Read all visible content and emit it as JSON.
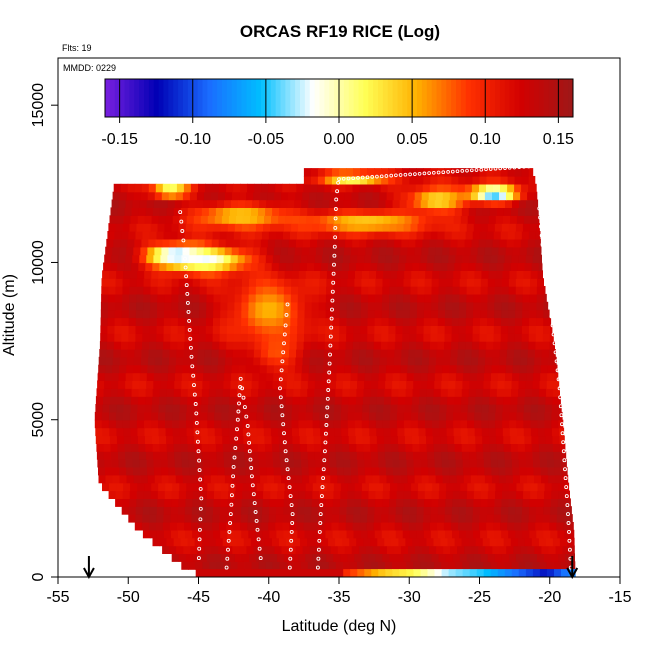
{
  "chart_data": {
    "type": "heatmap",
    "title": "ORCAS RF19 RICE (Log)",
    "flights_note": "Flts: 19",
    "date_note": "MMDD: 0229",
    "xlabel": "Latitude (deg N)",
    "ylabel": "Altitude (m)",
    "xlim": [
      -55,
      -15
    ],
    "ylim": [
      0,
      16500
    ],
    "x_ticks": [
      -55,
      -50,
      -45,
      -40,
      -35,
      -30,
      -25,
      -20,
      -15
    ],
    "y_ticks": [
      0,
      5000,
      10000,
      15000
    ],
    "colorbar": {
      "range": [
        -0.16,
        0.16
      ],
      "ticks": [
        -0.15,
        -0.1,
        -0.05,
        0.0,
        0.05,
        0.1,
        0.15
      ],
      "tick_labels": [
        "-0.15",
        "-0.10",
        "-0.05",
        "0.00",
        "0.05",
        "0.10",
        "0.15"
      ],
      "colors": [
        "#7a1fe0",
        "#0000b4",
        "#1a6cff",
        "#00bfff",
        "#ffffff",
        "#ffff55",
        "#ffb000",
        "#ff3000",
        "#d20000",
        "#9e1818"
      ]
    },
    "field_envelope": [
      {
        "alt": 0,
        "lat_min": -45.2,
        "lat_max": -18.2
      },
      {
        "alt": 1500,
        "lat_min": -49.3,
        "lat_max": -18.3
      },
      {
        "alt": 3000,
        "lat_min": -52.1,
        "lat_max": -18.7
      },
      {
        "alt": 5000,
        "lat_min": -52.4,
        "lat_max": -19.1
      },
      {
        "alt": 7500,
        "lat_min": -52.0,
        "lat_max": -19.7
      },
      {
        "alt": 9500,
        "lat_min": -51.9,
        "lat_max": -20.5
      },
      {
        "alt": 11500,
        "lat_min": -51.3,
        "lat_max": -20.8
      },
      {
        "alt": 12500,
        "lat_min": -51.0,
        "lat_max": -21.0
      },
      {
        "alt": 13000,
        "lat_min": -37.5,
        "lat_max": -21.3
      }
    ],
    "anomalies": [
      {
        "lat": -46.5,
        "alt": 10250,
        "value": -0.06,
        "lat_width": 4.5,
        "alt_width": 700
      },
      {
        "lat": -44.5,
        "alt": 10100,
        "value": -0.02,
        "lat_width": 7.0,
        "alt_width": 900
      },
      {
        "lat": -40.0,
        "alt": 8500,
        "value": 0.05,
        "lat_width": 6.0,
        "alt_width": 2000
      },
      {
        "lat": -39.5,
        "alt": 7200,
        "value": 0.08,
        "lat_width": 4.0,
        "alt_width": 1500
      },
      {
        "lat": -42.0,
        "alt": 11500,
        "value": 0.04,
        "lat_width": 8.0,
        "alt_width": 900
      },
      {
        "lat": -33.0,
        "alt": 11300,
        "value": 0.04,
        "lat_width": 10.0,
        "alt_width": 800
      },
      {
        "lat": -24.0,
        "alt": 12200,
        "value": -0.06,
        "lat_width": 4.0,
        "alt_width": 600
      },
      {
        "lat": -28.0,
        "alt": 12000,
        "value": 0.03,
        "lat_width": 5.0,
        "alt_width": 900
      },
      {
        "lat": -34.0,
        "alt": 12700,
        "value": 0.0,
        "lat_width": 5.0,
        "alt_width": 400
      },
      {
        "lat": -47.0,
        "alt": 12300,
        "value": 0.0,
        "lat_width": 3.0,
        "alt_width": 500
      }
    ],
    "surface_strip": [
      {
        "lat": -35.0,
        "value": 0.1
      },
      {
        "lat": -32.0,
        "value": 0.04
      },
      {
        "lat": -30.0,
        "value": 0.02
      },
      {
        "lat": -27.5,
        "value": -0.03
      },
      {
        "lat": -25.0,
        "value": -0.05
      },
      {
        "lat": -22.5,
        "value": -0.09
      },
      {
        "lat": -20.5,
        "value": -0.12
      },
      {
        "lat": -19.0,
        "value": -0.08
      }
    ],
    "flight_tracks": [
      [
        [
          -51.3,
          12300
        ],
        [
          -51.7,
          11200
        ],
        [
          -51.9,
          10300
        ],
        [
          -52.1,
          9200
        ],
        [
          -52.3,
          7800
        ],
        [
          -52.3,
          6500
        ],
        [
          -52.6,
          5200
        ],
        [
          -52.6,
          4000
        ],
        [
          -52.6,
          3100
        ]
      ],
      [
        [
          -46.3,
          11600
        ],
        [
          -46.0,
          10400
        ],
        [
          -45.8,
          9000
        ],
        [
          -45.5,
          7000
        ],
        [
          -45.2,
          5500
        ],
        [
          -45.0,
          4000
        ],
        [
          -44.8,
          2500
        ],
        [
          -44.9,
          1500
        ],
        [
          -45.0,
          300
        ]
      ],
      [
        [
          -43.0,
          300
        ],
        [
          -42.7,
          2000
        ],
        [
          -42.5,
          3500
        ],
        [
          -42.2,
          5000
        ],
        [
          -42.0,
          6300
        ],
        [
          -41.5,
          4800
        ],
        [
          -41.2,
          3200
        ],
        [
          -40.8,
          1500
        ],
        [
          -40.5,
          300
        ]
      ],
      [
        [
          -38.5,
          300
        ],
        [
          -38.3,
          2000
        ],
        [
          -38.8,
          4000
        ],
        [
          -39.2,
          6000
        ],
        [
          -38.8,
          8000
        ],
        [
          -38.6,
          9000
        ]
      ],
      [
        [
          -36.5,
          300
        ],
        [
          -36.3,
          2000
        ],
        [
          -36.0,
          4000
        ],
        [
          -35.7,
          6500
        ],
        [
          -35.5,
          8500
        ],
        [
          -35.3,
          10500
        ],
        [
          -35.2,
          12000
        ],
        [
          -35.0,
          12800
        ]
      ],
      [
        [
          -18.5,
          300
        ],
        [
          -18.7,
          2000
        ],
        [
          -19.0,
          4000
        ],
        [
          -19.3,
          6000
        ],
        [
          -19.8,
          8000
        ],
        [
          -20.4,
          10000
        ],
        [
          -20.8,
          12000
        ]
      ]
    ],
    "top_leg": {
      "lat_start": -35.0,
      "lat_end": -21.5,
      "alt_start": 12650,
      "alt_end": 13050
    },
    "marker_arrows_lat": [
      -52.8,
      -18.4
    ]
  }
}
